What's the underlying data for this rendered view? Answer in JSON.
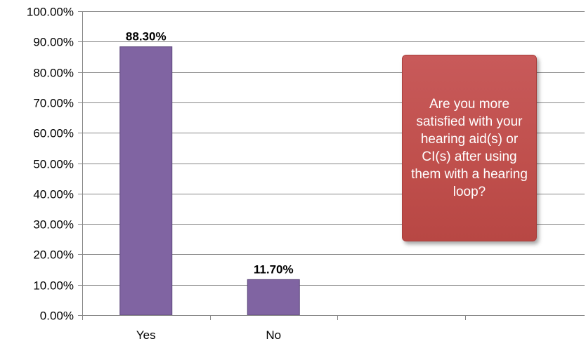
{
  "chart_data": {
    "type": "bar",
    "categories": [
      "Yes",
      "No"
    ],
    "values": [
      88.3,
      11.7
    ],
    "data_labels": [
      "88.30%",
      "11.70%"
    ],
    "ylim": [
      0,
      100
    ],
    "yticks": [
      0,
      10,
      20,
      30,
      40,
      50,
      60,
      70,
      80,
      90,
      100
    ],
    "ytick_labels": [
      "0.00%",
      "10.00%",
      "20.00%",
      "30.00%",
      "40.00%",
      "50.00%",
      "60.00%",
      "70.00%",
      "80.00%",
      "90.00%",
      "100.00%"
    ],
    "grid": true,
    "legend": "none",
    "bar_color": "#8064a2",
    "callout_text": "Are you more satisfied with your hearing aid(s) or CI(s) after using them with a hearing loop?",
    "callout_color": "#c0504d"
  }
}
